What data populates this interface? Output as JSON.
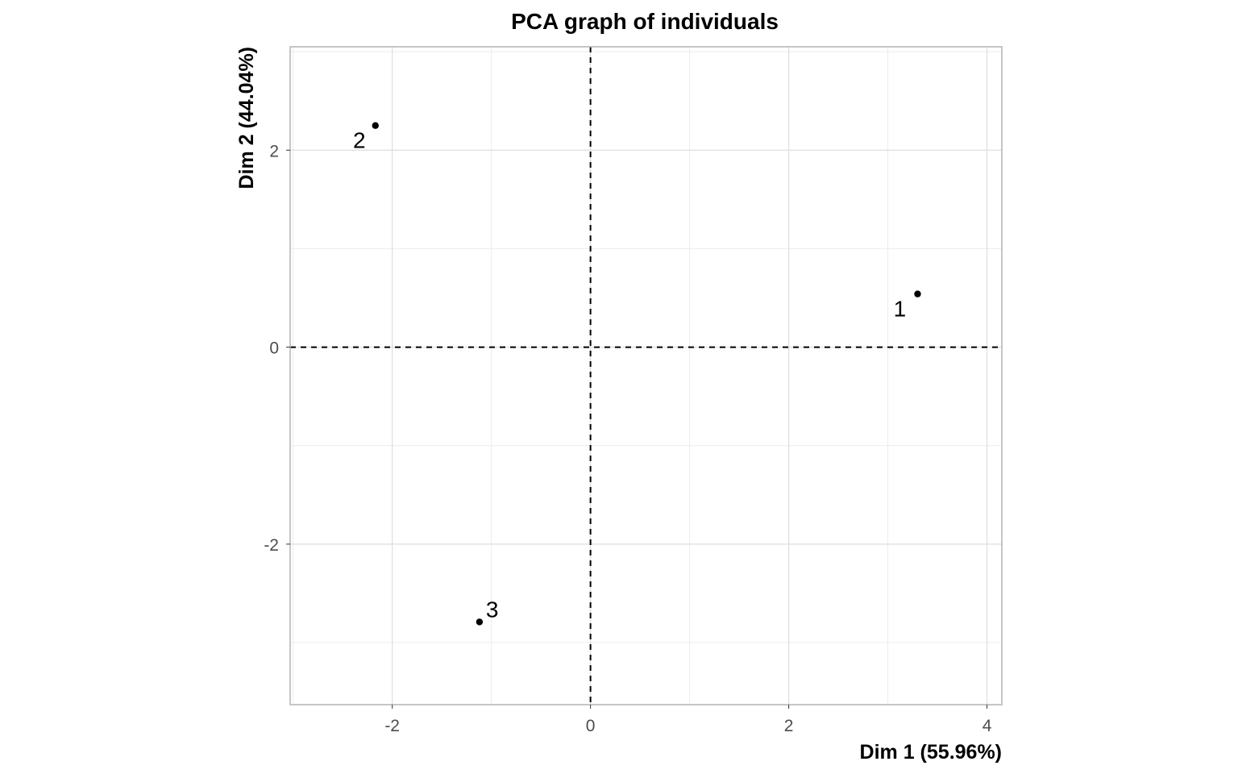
{
  "chart_data": {
    "type": "scatter",
    "title": "PCA graph of individuals",
    "xlabel": "Dim 1 (55.96%)",
    "ylabel": "Dim 2 (44.04%)",
    "xlim": [
      -3.03,
      4.15
    ],
    "ylim": [
      -3.63,
      3.05
    ],
    "x_ticks": [
      -2,
      0,
      2,
      4
    ],
    "y_ticks": [
      -2,
      0,
      2
    ],
    "x_tick_labels": [
      "-2",
      "0",
      "2",
      "4"
    ],
    "y_tick_labels": [
      "-2",
      "0",
      "2"
    ],
    "grid": true,
    "reference_lines": [
      {
        "axis": "x",
        "value": 0,
        "style": "dashed"
      },
      {
        "axis": "y",
        "value": 0,
        "style": "dashed"
      }
    ],
    "points": [
      {
        "label": "1",
        "x": 3.3,
        "y": 0.54
      },
      {
        "label": "2",
        "x": -2.17,
        "y": 2.25
      },
      {
        "label": "3",
        "x": -1.12,
        "y": -2.79
      }
    ]
  }
}
